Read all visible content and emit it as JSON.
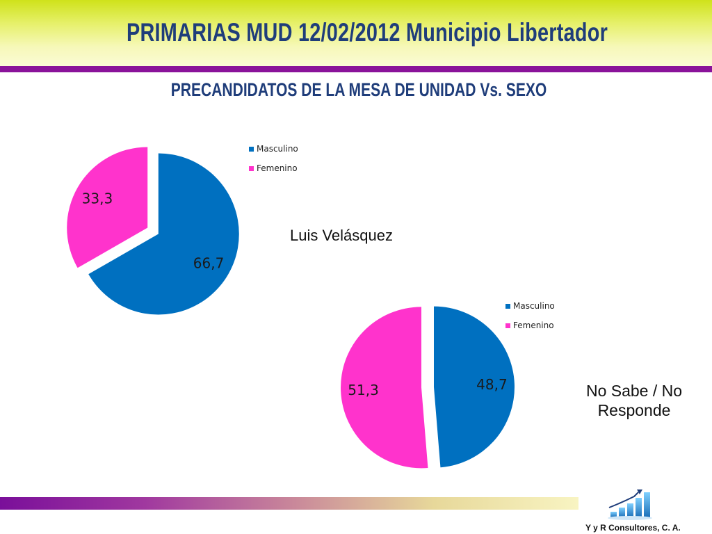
{
  "title": "PRIMARIAS MUD 12/02/2012  Municipio Libertador",
  "subtitle": "PRECANDIDATOS DE LA MESA DE UNIDAD  Vs.  SEXO",
  "colors": {
    "masculino": "#0070c0",
    "femenino": "#ff33cc",
    "accent_bar": "#8a139a",
    "title": "#1f3d7a"
  },
  "chart_data": [
    {
      "type": "pie",
      "caption": "Luis Velásquez",
      "categories": [
        "Masculino",
        "Femenino"
      ],
      "values": [
        66.7,
        33.3
      ],
      "value_labels": [
        "66,7",
        "33,3"
      ],
      "legend": [
        "Masculino",
        "Femenino"
      ]
    },
    {
      "type": "pie",
      "caption": "No Sabe / No Responde",
      "categories": [
        "Masculino",
        "Femenino"
      ],
      "values": [
        48.7,
        51.3
      ],
      "value_labels": [
        "48,7",
        "51,3"
      ],
      "legend": [
        "Masculino",
        "Femenino"
      ]
    }
  ],
  "footer": {
    "company": "Y y R Consultores, C. A."
  }
}
